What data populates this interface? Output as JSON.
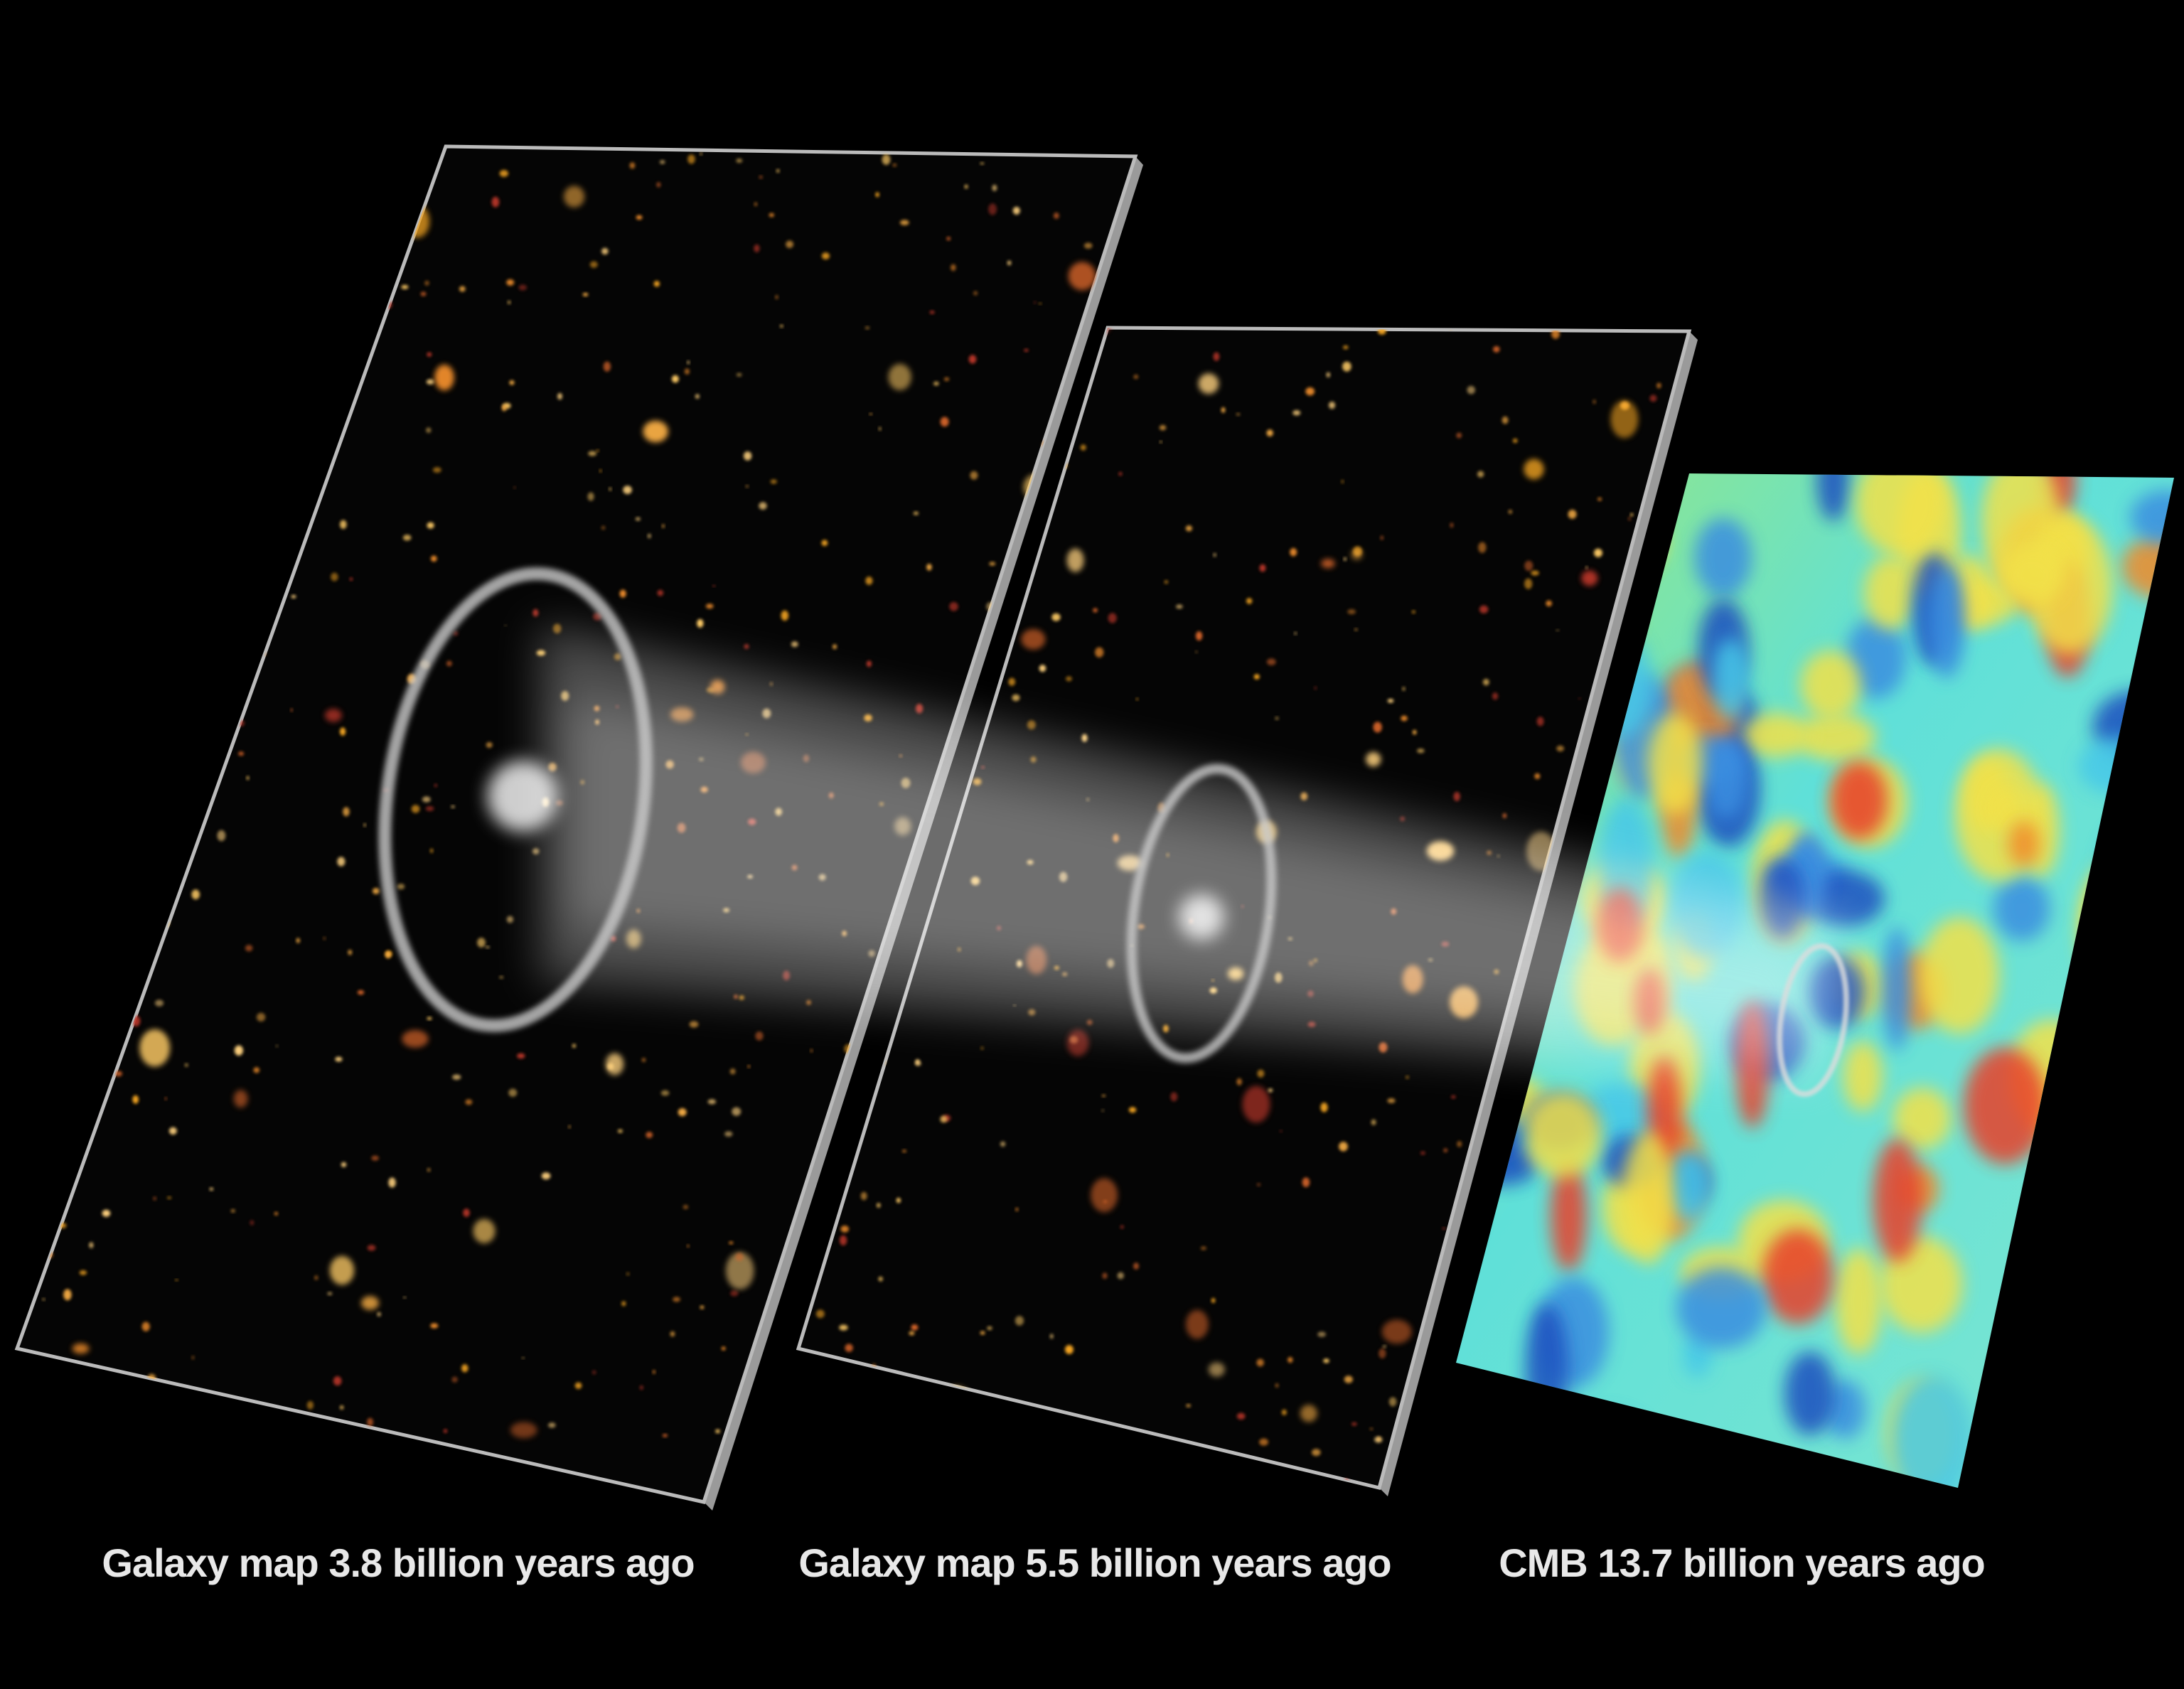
{
  "captions": [
    "Galaxy map 3.8 billion years ago",
    "Galaxy map 5.5 billion years ago",
    "CMB 13.7 billion years ago"
  ]
}
